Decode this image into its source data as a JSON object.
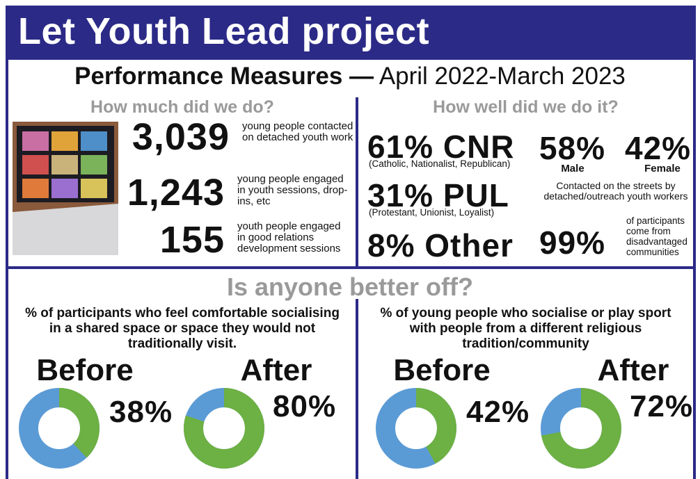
{
  "header": {
    "title": "Let Youth Lead project"
  },
  "subtitle": {
    "bold": "Performance Measures —",
    "light": "April 2022-March 2023"
  },
  "do": {
    "heading": "How much did we do?",
    "stats": [
      {
        "number": "3,039",
        "text": "young people contacted on detached youth work"
      },
      {
        "number": "1,243",
        "text": "young people engaged in youth sessions, drop-ins, etc"
      },
      {
        "number": "155",
        "text": "youth people engaged in good relations development sessions"
      }
    ]
  },
  "well": {
    "heading": "How well did we do it?",
    "groups": [
      {
        "label": "61% CNR",
        "note": "(Catholic, Nationalist, Republican)"
      },
      {
        "label": "31% PUL",
        "note": "(Protestant, Unionist, Loyalist)"
      },
      {
        "label": "8% Other"
      }
    ],
    "gender": [
      {
        "label": "58%",
        "note": "Male"
      },
      {
        "label": "42%",
        "note": "Female"
      }
    ],
    "gender_note": "Contacted on the streets by detached/outreach youth workers",
    "disadvantaged": {
      "label": "99%",
      "note": "of participants come from disadvantaged communities"
    }
  },
  "better": {
    "heading": "Is anyone better off?",
    "panels": [
      {
        "question": "% of participants who feel comfortable socialising in a shared space or space they would not traditionally visit.",
        "before": {
          "title": "Before",
          "value": 38,
          "label": "38%"
        },
        "after": {
          "title": "After",
          "value": 80,
          "label": "80%"
        }
      },
      {
        "question": "% of young people who socialise or play sport with people from a different religious tradition/community",
        "before": {
          "title": "Before",
          "value": 42,
          "label": "42%"
        },
        "after": {
          "title": "After",
          "value": 72,
          "label": "72%"
        }
      }
    ]
  }
}
